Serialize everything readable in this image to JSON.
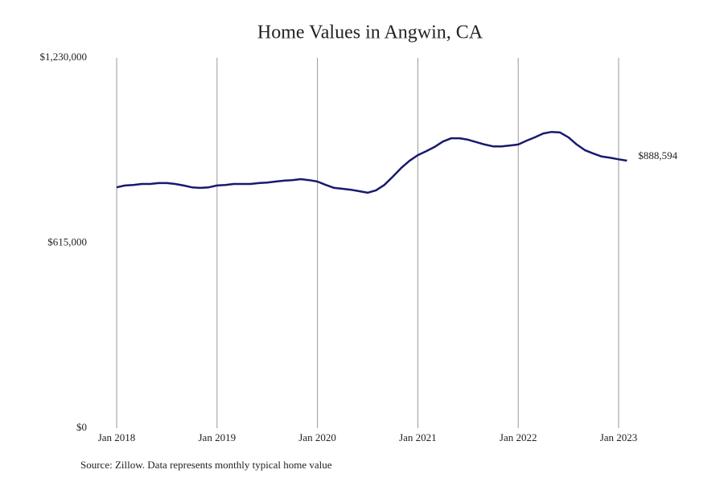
{
  "chart_data": {
    "type": "line",
    "title": "Home Values in Angwin, CA",
    "source": "Source: Zillow. Data represents monthly typical home value",
    "categories": [
      "Jan 2018",
      null,
      null,
      null,
      null,
      null,
      null,
      null,
      null,
      null,
      null,
      null,
      "Jan 2019",
      null,
      null,
      null,
      null,
      null,
      null,
      null,
      null,
      null,
      null,
      null,
      "Jan 2020",
      null,
      null,
      null,
      null,
      null,
      null,
      null,
      null,
      null,
      null,
      null,
      "Jan 2021",
      null,
      null,
      null,
      null,
      null,
      null,
      null,
      null,
      null,
      null,
      null,
      "Jan 2022",
      null,
      null,
      null,
      null,
      null,
      null,
      null,
      null,
      null,
      null,
      null,
      "Jan 2023",
      null
    ],
    "series": [
      {
        "color": "#191970",
        "values": [
          800000,
          806000,
          808000,
          811000,
          811000,
          814000,
          814000,
          811000,
          806000,
          800000,
          798000,
          800000,
          806000,
          808000,
          811000,
          811000,
          811000,
          814000,
          816000,
          819000,
          822000,
          824000,
          827000,
          824000,
          819000,
          808000,
          798000,
          795000,
          792000,
          787000,
          782000,
          790000,
          808000,
          835000,
          864000,
          888000,
          907000,
          920000,
          934000,
          952000,
          963000,
          963000,
          958000,
          950000,
          942000,
          936000,
          936000,
          939000,
          942000,
          955000,
          966000,
          979000,
          984000,
          982000,
          966000,
          942000,
          923000,
          912000,
          902000,
          898000,
          893000,
          888594
        ],
        "value_labels": [
          null,
          null,
          null,
          null,
          null,
          null,
          null,
          null,
          null,
          null,
          null,
          null,
          null,
          null,
          null,
          null,
          null,
          null,
          null,
          null,
          null,
          null,
          null,
          null,
          null,
          null,
          null,
          null,
          null,
          null,
          null,
          null,
          null,
          null,
          null,
          null,
          null,
          null,
          null,
          null,
          null,
          null,
          null,
          null,
          null,
          null,
          null,
          null,
          null,
          null,
          null,
          null,
          null,
          null,
          null,
          null,
          null,
          null,
          null,
          null,
          null,
          "$888,594"
        ]
      }
    ],
    "ylim": [
      0,
      1230000
    ],
    "yticks": [
      {
        "value": 0,
        "label": "$0"
      },
      {
        "value": 615000,
        "label": "$615,000"
      },
      {
        "value": 1230000,
        "label": "$1,230,000"
      }
    ],
    "grid": "x"
  }
}
